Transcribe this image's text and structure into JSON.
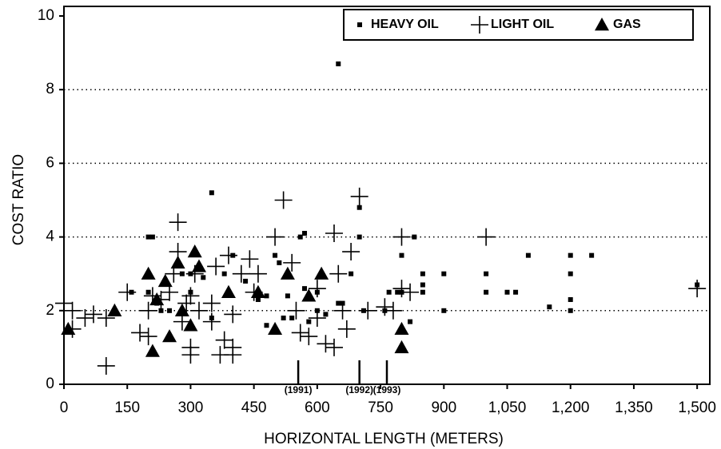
{
  "chart_data": {
    "type": "scatter",
    "xlabel": "HORIZONTAL LENGTH (METERS)",
    "ylabel": "COST RATIO",
    "xlim": [
      0,
      1530
    ],
    "ylim": [
      0,
      10
    ],
    "xticks": [
      0,
      150,
      300,
      450,
      600,
      750,
      900,
      {
        "value": 1050,
        "label": "1,050"
      },
      {
        "value": 1200,
        "label": "1,200"
      },
      {
        "value": 1350,
        "label": "1,350"
      },
      {
        "value": 1500,
        "label": "1,500"
      }
    ],
    "yticks": [
      0,
      2,
      4,
      6,
      8,
      10
    ],
    "grid": true,
    "legend": "upper right",
    "annotations": [
      {
        "label": "(1991)",
        "x": 555
      },
      {
        "label": "(1992)",
        "x": 700
      },
      {
        "label": "(1993)",
        "x": 765
      }
    ],
    "series": [
      {
        "name": "HEAVY OIL",
        "marker": "square",
        "color": "#000000",
        "x": [
          200,
          210,
          350,
          650,
          700,
          700,
          560,
          570,
          830,
          800,
          850,
          850,
          850,
          900,
          900,
          1000,
          1000,
          1050,
          1070,
          1100,
          1150,
          1200,
          1200,
          1200,
          1200,
          1250,
          1500,
          760,
          770,
          790,
          800,
          820,
          710,
          600,
          620,
          650,
          660,
          680,
          530,
          520,
          540,
          480,
          460,
          400,
          380,
          350,
          330,
          300,
          300,
          280,
          250,
          230,
          220,
          200,
          160,
          500,
          510,
          570,
          580,
          600,
          480,
          430
        ],
        "values": [
          4,
          4,
          5.2,
          8.7,
          4.8,
          4.0,
          4.0,
          4.1,
          4.0,
          3.5,
          3.0,
          2.7,
          2.5,
          3.0,
          2.0,
          3.0,
          2.5,
          2.5,
          2.5,
          3.5,
          2.1,
          3.5,
          3.0,
          2.3,
          2.0,
          3.5,
          2.7,
          2.0,
          2.5,
          2.5,
          2.5,
          1.7,
          2.0,
          2.5,
          1.9,
          2.2,
          2.2,
          3.0,
          2.4,
          1.8,
          1.8,
          2.4,
          2.3,
          3.5,
          3.0,
          1.8,
          2.9,
          3.0,
          2.5,
          3.0,
          2.0,
          2.0,
          2.2,
          2.5,
          2.5,
          3.5,
          3.3,
          2.6,
          1.7,
          2.0,
          1.6,
          2.8
        ]
      },
      {
        "name": "LIGHT OIL",
        "marker": "plus",
        "color": "#000000",
        "x": [
          0,
          20,
          20,
          50,
          70,
          100,
          100,
          150,
          180,
          200,
          200,
          210,
          230,
          250,
          260,
          270,
          270,
          280,
          290,
          300,
          300,
          300,
          310,
          320,
          350,
          350,
          360,
          370,
          380,
          390,
          400,
          400,
          400,
          420,
          440,
          450,
          460,
          500,
          520,
          540,
          550,
          560,
          580,
          600,
          600,
          620,
          640,
          640,
          650,
          660,
          670,
          680,
          700,
          720,
          780,
          800,
          800,
          820,
          1000,
          1500,
          760
        ],
        "values": [
          2.2,
          1.5,
          2.0,
          1.8,
          1.9,
          1.8,
          0.5,
          2.5,
          1.4,
          1.3,
          2.0,
          2.4,
          2.3,
          2.5,
          3.0,
          4.4,
          3.6,
          1.7,
          2.2,
          0.8,
          1.0,
          2.4,
          3.0,
          2.0,
          2.2,
          1.7,
          3.2,
          0.8,
          1.2,
          3.5,
          1.9,
          1.0,
          0.8,
          3.0,
          3.4,
          2.5,
          3.0,
          4.0,
          5.0,
          3.3,
          2.0,
          1.4,
          1.3,
          2.6,
          1.8,
          1.1,
          1.0,
          4.1,
          3.0,
          2.0,
          1.5,
          3.6,
          5.1,
          2.0,
          2.0,
          4.0,
          2.6,
          2.5,
          4.0,
          2.6,
          2.1
        ]
      },
      {
        "name": "GAS",
        "marker": "triangle",
        "color": "#000000",
        "x": [
          10,
          120,
          200,
          210,
          220,
          240,
          250,
          270,
          280,
          300,
          310,
          320,
          390,
          460,
          500,
          530,
          580,
          610,
          800,
          800
        ],
        "values": [
          1.5,
          2.0,
          3.0,
          0.9,
          2.3,
          2.8,
          1.3,
          3.3,
          2.0,
          1.6,
          3.6,
          3.2,
          2.5,
          2.5,
          1.5,
          3.0,
          2.4,
          3.0,
          1.5,
          1.0
        ]
      }
    ]
  }
}
